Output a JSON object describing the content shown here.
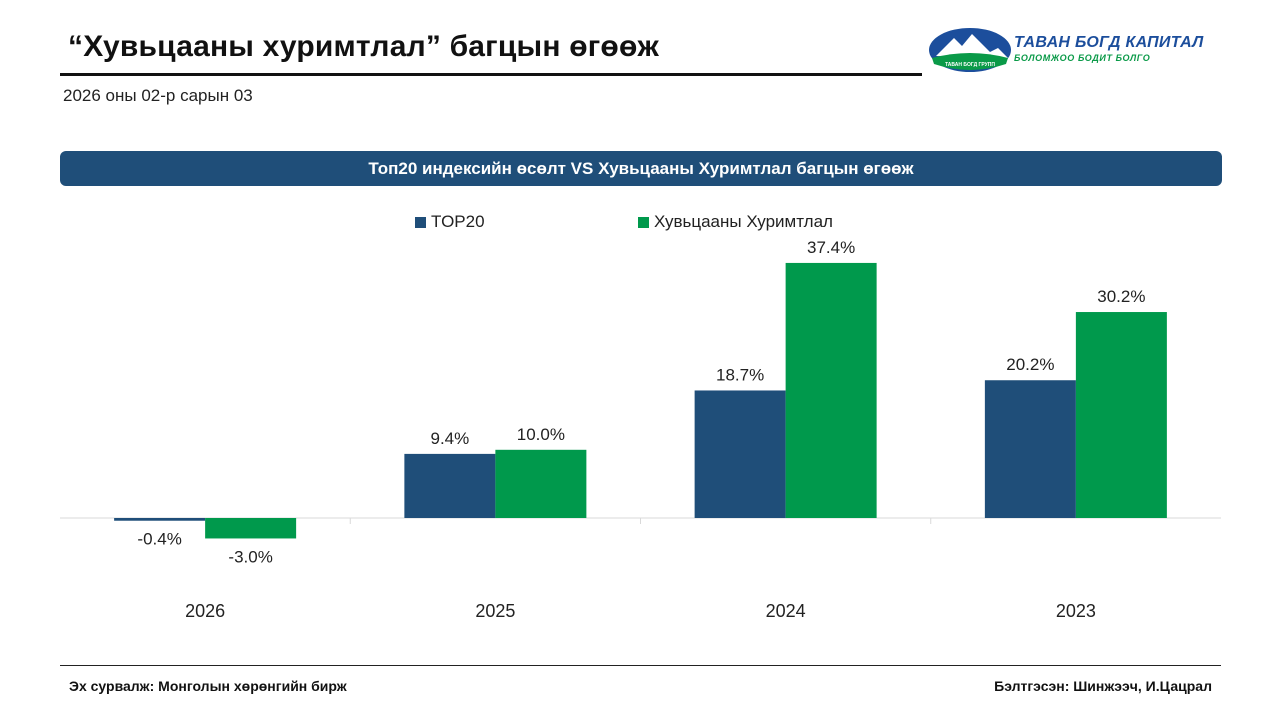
{
  "header": {
    "title": "“Хувьцааны хуримтлал” багцын өгөөж",
    "date": "2026 оны 02-р сарын 03"
  },
  "logo": {
    "name": "ТАВАН БОГД КАПИТАЛ",
    "tagline": "БОЛОМЖОО БОДИТ БОЛГО",
    "badge": "ТАВАН БОГД ГРУПП"
  },
  "banner": {
    "title": "Топ20 индексийн өсөлт VS Хувьцааны Хуримтлал багцын өгөөж"
  },
  "colors": {
    "top20": "#1f4e79",
    "portfolio": "#00994c",
    "banner": "#1f4e79"
  },
  "chart_data": {
    "type": "bar",
    "title": "Топ20 индексийн өсөлт VS Хувьцааны Хуримтлал багцын өгөөж",
    "categories": [
      "2026",
      "2025",
      "2024",
      "2023"
    ],
    "series": [
      {
        "name": "TOP20",
        "values": [
          -0.4,
          9.4,
          18.7,
          20.2
        ],
        "labels": [
          "-0.4%",
          "9.4%",
          "18.7%",
          "20.2%"
        ]
      },
      {
        "name": "Хувьцааны Хуримтлал",
        "values": [
          -3.0,
          10.0,
          37.4,
          30.2
        ],
        "labels": [
          "-3.0%",
          "10.0%",
          "37.4%",
          "30.2%"
        ]
      }
    ],
    "unit": "%",
    "ylim": [
      -5,
      40
    ],
    "grid": false,
    "legend": "top-center",
    "xlabel": "",
    "ylabel": ""
  },
  "footer": {
    "source": "Эх сурвалж: Монголын хөрөнгийн бирж",
    "prepared_by": "Бэлтгэсэн: Шинжээч, И.Цацрал"
  }
}
